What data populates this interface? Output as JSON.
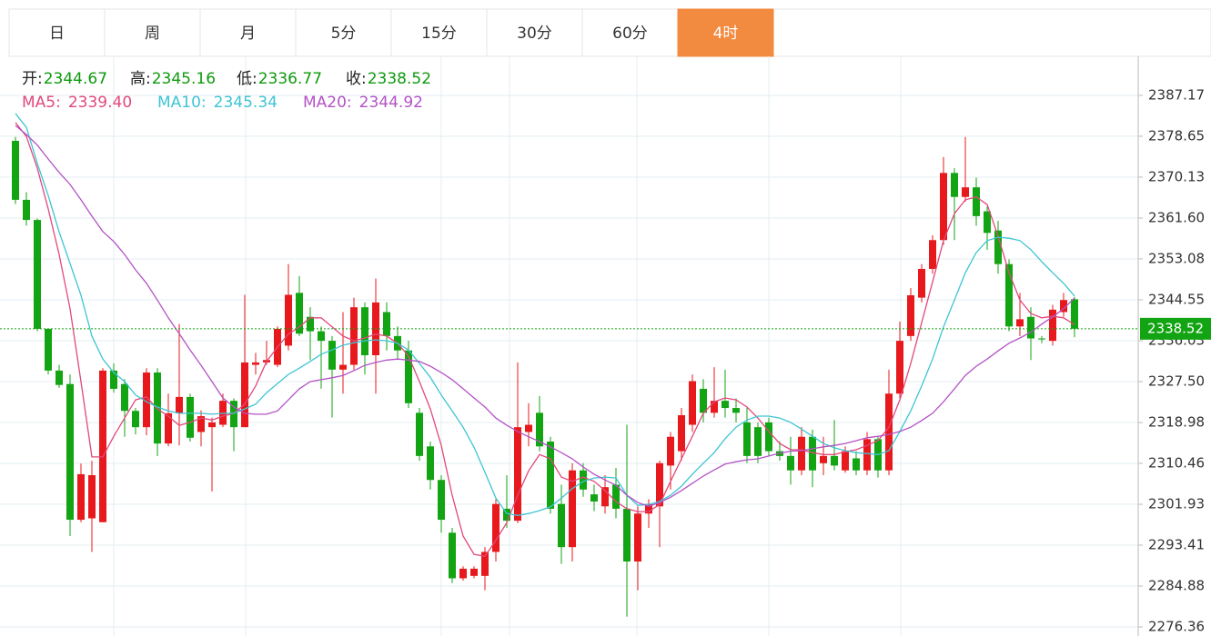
{
  "chart_data": {
    "type": "candlestick",
    "tabs": [
      "日",
      "周",
      "月",
      "5分",
      "15分",
      "30分",
      "60分",
      "4时"
    ],
    "active_tab": 7,
    "header_labels": [
      "开:",
      "高:",
      "低:",
      "收:"
    ],
    "up_color": "#e8191c",
    "down_color": "#12a412",
    "open": [
      2377.7,
      2365.4,
      2361.2,
      2338.5,
      2329.8,
      2327,
      2298.7,
      2299,
      2298.2,
      2329.8,
      2327,
      2321.4,
      2318,
      2329.4,
      2314.6,
      2320.9,
      2324.3,
      2317,
      2318,
      2318.5,
      2323.5,
      2318,
      2331,
      2331.5,
      2331,
      2335,
      2346,
      2341,
      2338,
      2336,
      2330,
      2331,
      2343,
      2333,
      2342,
      2337,
      2334,
      2321,
      2314,
      2307,
      2296,
      2286.5,
      2287,
      2287,
      2292,
      2301,
      2298.5,
      2317,
      2321,
      2315,
      2302,
      2293,
      2309,
      2304,
      2301.5,
      2306,
      2301,
      2290,
      2300,
      2301.5,
      2310,
      2313,
      2318.5,
      2326,
      2321,
      2323.5,
      2322,
      2319,
      2318,
      2319,
      2313,
      2312,
      2309,
      2316,
      2310.5,
      2312,
      2309,
      2311.5,
      2309,
      2315.5,
      2309,
      2325,
      2337,
      2345,
      2351,
      2357,
      2371,
      2366,
      2368,
      2363,
      2359,
      2352,
      2339,
      2341,
      2336.5,
      2336,
      2342,
      2344.67
    ],
    "high": [
      2378.5,
      2367,
      2361.5,
      2338.5,
      2331,
      2329,
      2310.4,
      2311,
      2330.3,
      2331.3,
      2328,
      2322,
      2330.3,
      2330.3,
      2325,
      2339.5,
      2325,
      2321.5,
      2320,
      2325,
      2324,
      2345.6,
      2333.5,
      2336,
      2339,
      2352,
      2349.5,
      2343,
      2339,
      2337,
      2342,
      2345,
      2344,
      2349,
      2344,
      2339,
      2336,
      2322,
      2315,
      2308,
      2297,
      2289,
      2289,
      2293,
      2303,
      2308,
      2331.5,
      2323,
      2324.5,
      2316,
      2306,
      2310.5,
      2310.5,
      2306,
      2308,
      2309.5,
      2318.5,
      2301.5,
      2303,
      2311,
      2317,
      2322,
      2329,
      2328,
      2330.5,
      2330,
      2324,
      2322,
      2319,
      2320,
      2315,
      2316,
      2318,
      2317.5,
      2316,
      2319.5,
      2314,
      2313,
      2317,
      2316,
      2330,
      2340,
      2347,
      2352,
      2358,
      2374.3,
      2372,
      2378.5,
      2370,
      2364,
      2361,
      2353,
      2346,
      2343,
      2337,
      2343.5,
      2346,
      2345.16
    ],
    "low": [
      2364.5,
      2360,
      2338,
      2329,
      2326.2,
      2295.3,
      2298.2,
      2292,
      2298.2,
      2325.2,
      2316,
      2316.5,
      2316.3,
      2312,
      2314,
      2314.2,
      2315,
      2314,
      2304.6,
      2318,
      2313,
      2318,
      2329,
      2331,
      2330.5,
      2334,
      2337,
      2332,
      2326,
      2320,
      2325,
      2330,
      2329,
      2325,
      2334,
      2332,
      2322,
      2311,
      2305,
      2296,
      2285.5,
      2286,
      2286.5,
      2284,
      2290,
      2297,
      2298,
      2314,
      2313,
      2300,
      2289.5,
      2290,
      2303.5,
      2300.5,
      2300,
      2299,
      2278.5,
      2284,
      2297,
      2293,
      2305,
      2311,
      2317,
      2319,
      2320,
      2320,
      2319,
      2310.5,
      2310.5,
      2312,
      2311,
      2306,
      2308,
      2305.5,
      2308,
      2309,
      2308.5,
      2308,
      2308,
      2307.5,
      2308,
      2324,
      2336,
      2344,
      2350,
      2356,
      2357,
      2365,
      2360,
      2355,
      2350,
      2338,
      2337,
      2332,
      2335.5,
      2335,
      2341,
      2336.77
    ],
    "close": [
      2365.4,
      2361.2,
      2338.5,
      2329.8,
      2326.8,
      2298.7,
      2308.2,
      2308,
      2329.8,
      2326,
      2321.4,
      2318,
      2329.4,
      2314.6,
      2320.9,
      2324.3,
      2315.8,
      2320.3,
      2319,
      2323.5,
      2318,
      2331.5,
      2331.5,
      2332,
      2338.5,
      2345.6,
      2337.5,
      2338,
      2336,
      2330,
      2331,
      2343,
      2333,
      2344,
      2337,
      2334,
      2323,
      2312,
      2307,
      2298.7,
      2286.5,
      2288.5,
      2288.5,
      2292,
      2302,
      2298.5,
      2318,
      2318.5,
      2314,
      2301,
      2293,
      2309,
      2305,
      2302.5,
      2305.5,
      2301,
      2290,
      2300,
      2302,
      2310.5,
      2316,
      2320.5,
      2327.6,
      2321,
      2323.5,
      2322,
      2321,
      2312,
      2312,
      2313,
      2312,
      2309,
      2316,
      2309,
      2312,
      2310,
      2313,
      2309,
      2315.5,
      2309,
      2325,
      2336,
      2345.5,
      2351,
      2357,
      2371,
      2366,
      2368,
      2362,
      2358.5,
      2352,
      2339,
      2340.5,
      2336.5,
      2336.3,
      2342.5,
      2344.5,
      2338.52
    ],
    "series": [
      {
        "name": "MA5:",
        "color": "#e2487c",
        "legend_value": "2339.40",
        "values": [
          2381.5,
          2378.6,
          2372.0,
          2363.5,
          2354.0,
          2342.7,
          2327.5,
          2311.8,
          2311.8,
          2316.1,
          2319.9,
          2323.7,
          2324.3,
          2321.8,
          2320.3,
          2318.4,
          2319.0,
          2319.9,
          2319.5,
          2320.3,
          2320.9,
          2322.8,
          2326.6,
          2331.7,
          2334.7,
          2337.4,
          2338.9,
          2340.8,
          2340.8,
          2338.9,
          2337.0,
          2336.0,
          2336.6,
          2337.4,
          2337.0,
          2335.5,
          2332.8,
          2327.5,
          2321.8,
          2314.2,
          2303.8,
          2295.3,
          2291.5,
          2291.1,
          2294.4,
          2298.1,
          2303.8,
          2308.9,
          2312.3,
          2311.4,
          2307.6,
          2306.7,
          2307.6,
          2306.7,
          2304.8,
          2302.5,
          2301.0,
          2300.4,
          2300.4,
          2301.9,
          2306.7,
          2311.4,
          2316.1,
          2320.9,
          2323.3,
          2324.1,
          2323.7,
          2322.2,
          2319.9,
          2317.1,
          2314.6,
          2313.3,
          2313.3,
          2312.7,
          2312.3,
          2312.3,
          2312.9,
          2313.3,
          2314.2,
          2315.2,
          2318.0,
          2323.7,
          2331.3,
          2339.8,
          2348.3,
          2356.9,
          2362.5,
          2365.4,
          2366.0,
          2364.4,
          2357.8,
          2350.2,
          2344.5,
          2341.7,
          2340.8,
          2341.1,
          2340.8,
          2339.4
        ]
      },
      {
        "name": "MA10:",
        "color": "#3ec4d4",
        "legend_value": "2345.34",
        "values": [
          2383.4,
          2380.5,
          2373.0,
          2366.3,
          2358.7,
          2352.1,
          2345.5,
          2337.0,
          2332.2,
          2329.4,
          2327.5,
          2324.7,
          2323.3,
          2322.2,
          2321.4,
          2320.9,
          2320.9,
          2320.9,
          2320.7,
          2320.9,
          2320.9,
          2321.8,
          2322.8,
          2325.2,
          2327.1,
          2329.0,
          2330.3,
          2331.7,
          2333.2,
          2334.1,
          2335.1,
          2335.6,
          2336.0,
          2336.2,
          2336.0,
          2335.5,
          2334.1,
          2331.3,
          2328.4,
          2324.7,
          2321.4,
          2318.0,
          2313.8,
          2308.6,
          2303.2,
          2300.0,
          2299.6,
          2300.0,
          2300.6,
          2301.4,
          2303.2,
          2305.2,
          2306.7,
          2307.4,
          2307.6,
          2307.4,
          2303.8,
          2301.7,
          2301.9,
          2302.5,
          2303.8,
          2305.7,
          2308.2,
          2310.5,
          2312.7,
          2315.6,
          2318.0,
          2319.5,
          2320.3,
          2320.3,
          2319.9,
          2319.0,
          2317.6,
          2316.1,
          2314.6,
          2313.7,
          2313.1,
          2312.7,
          2312.5,
          2312.3,
          2313.1,
          2317.1,
          2321.4,
          2326.6,
          2332.2,
          2338.9,
          2344.5,
          2350.2,
          2354.4,
          2356.9,
          2357.6,
          2357.4,
          2356.9,
          2355.0,
          2352.5,
          2350.2,
          2348.0,
          2345.34
        ]
      },
      {
        "name": "MA20:",
        "color": "#b452c6",
        "legend_value": "2344.92",
        "values": [
          2380.9,
          2379.0,
          2376.8,
          2373.9,
          2371.1,
          2368.6,
          2365.4,
          2362.0,
          2358.8,
          2356.7,
          2354.0,
          2350.8,
          2348.0,
          2344.5,
          2340.8,
          2337.5,
          2334.1,
          2330.9,
          2327.5,
          2324.1,
          2322.2,
          2320.9,
          2320.7,
          2320.7,
          2321.4,
          2323.7,
          2326.0,
          2327.5,
          2327.9,
          2328.3,
          2328.8,
          2329.8,
          2330.9,
          2331.5,
          2332.0,
          2332.2,
          2332.0,
          2331.7,
          2330.7,
          2329.4,
          2327.9,
          2326.0,
          2324.1,
          2322.2,
          2319.9,
          2318.4,
          2317.1,
          2316.0,
          2315.0,
          2313.9,
          2312.7,
          2311.4,
          2309.7,
          2308.2,
          2307.0,
          2305.9,
          2303.8,
          2302.3,
          2301.5,
          2302.3,
          2303.4,
          2304.8,
          2306.3,
          2307.8,
          2309.1,
          2310.3,
          2310.8,
          2311.2,
          2311.4,
          2312.0,
          2312.6,
          2313.0,
          2313.1,
          2313.5,
          2313.9,
          2314.2,
          2314.6,
          2315.2,
          2315.8,
          2316.1,
          2316.5,
          2317.1,
          2318.0,
          2319.4,
          2320.9,
          2323.3,
          2326.0,
          2328.8,
          2330.7,
          2332.2,
          2333.9,
          2335.5,
          2336.6,
          2337.8,
          2339.5,
          2341.0,
          2342.7,
          2344.92
        ]
      }
    ],
    "ylim": [
      2274.47,
      2395.31
    ],
    "yticks": [
      2387.17,
      2378.65,
      2370.13,
      {
        "value": 2361.6,
        "label": "2361.60"
      },
      2353.08,
      2344.55,
      2336.03,
      {
        "value": 2327.5,
        "label": "2327.50"
      },
      2318.98,
      2310.46,
      2301.93,
      2293.41,
      2284.88,
      2276.36
    ],
    "grid": true,
    "current_price": 2338.52,
    "current_price_color": "#12a412"
  }
}
